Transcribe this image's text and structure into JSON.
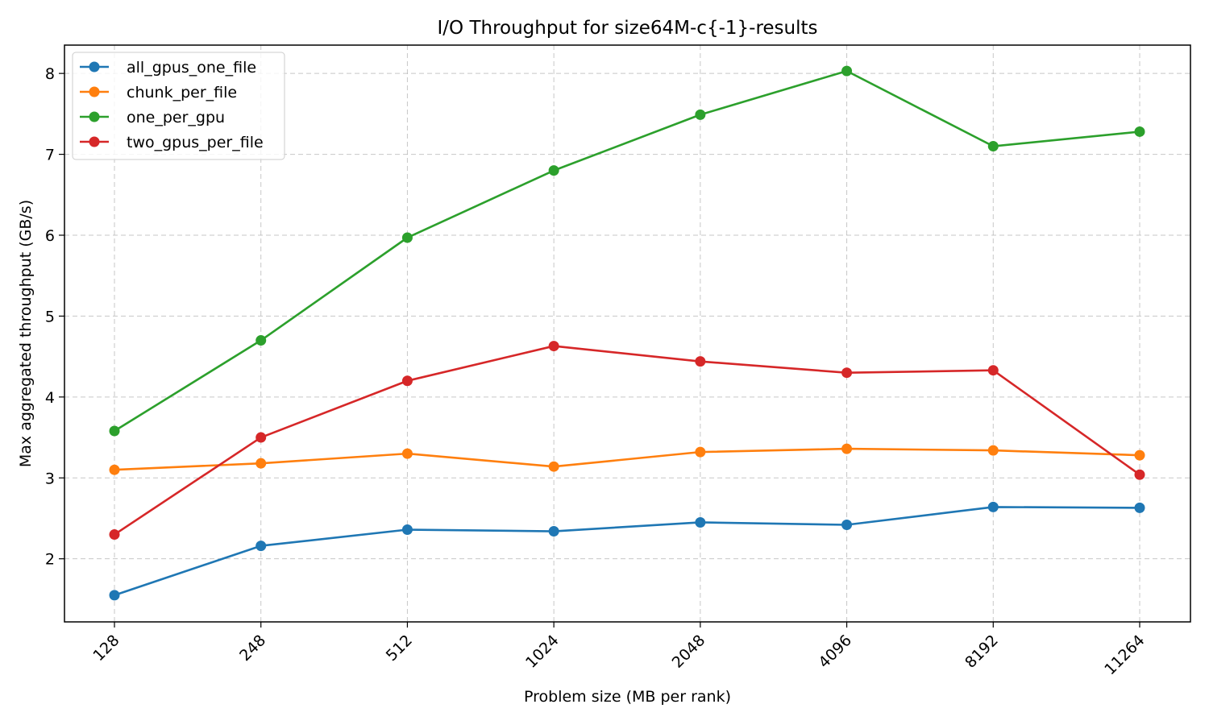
{
  "chart_data": {
    "type": "line",
    "title": "I/O Throughput for size64M-c{-1}-results",
    "xlabel": "Problem size (MB per rank)",
    "ylabel": "Max aggregated throughput (GB/s)",
    "categories": [
      "128",
      "248",
      "512",
      "1024",
      "2048",
      "4096",
      "8192",
      "11264"
    ],
    "ylim": [
      1.22,
      8.35
    ],
    "yticks": [
      2,
      3,
      4,
      5,
      6,
      7,
      8
    ],
    "grid": true,
    "legend_position": "top-left",
    "series": [
      {
        "name": "all_gpus_one_file",
        "color": "#1f77b4",
        "values": [
          1.55,
          2.16,
          2.36,
          2.34,
          2.45,
          2.42,
          2.64,
          2.63
        ]
      },
      {
        "name": "chunk_per_file",
        "color": "#ff7f0e",
        "values": [
          3.1,
          3.18,
          3.3,
          3.14,
          3.32,
          3.36,
          3.34,
          3.28
        ]
      },
      {
        "name": "one_per_gpu",
        "color": "#2ca02c",
        "values": [
          3.58,
          4.7,
          5.97,
          6.8,
          7.49,
          8.03,
          7.1,
          7.28
        ]
      },
      {
        "name": "two_gpus_per_file",
        "color": "#d62728",
        "values": [
          2.3,
          3.5,
          4.2,
          4.63,
          4.44,
          4.3,
          4.33,
          3.04
        ]
      }
    ]
  }
}
